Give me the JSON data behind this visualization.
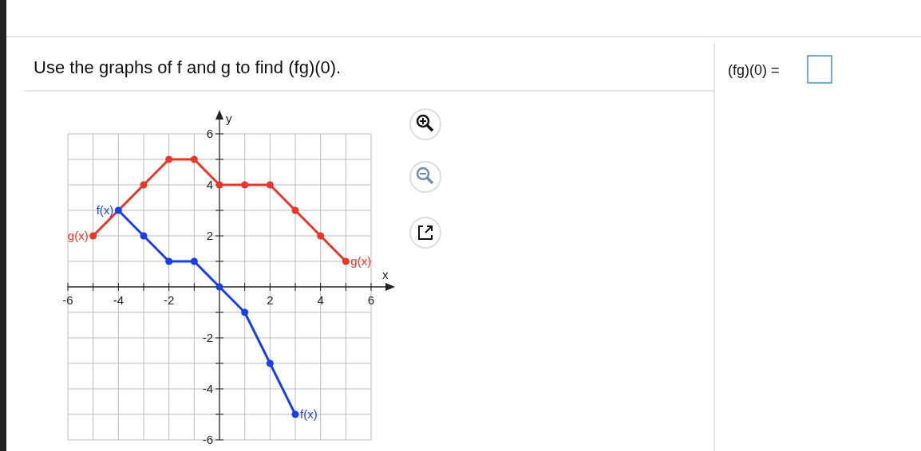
{
  "chart_data": {
    "type": "line",
    "title": "Use the graphs of f and g to find (fg)(0).",
    "annotations": [
      "(fg)(0) ="
    ],
    "xlabel": "x",
    "ylabel": "y",
    "series": [
      {
        "name": "g(x)",
        "color": "#e8372a",
        "x": [
          -5,
          -3,
          -2,
          -1,
          0,
          1,
          2,
          3,
          4,
          5
        ],
        "values": [
          2,
          4,
          5,
          5,
          4,
          4,
          4,
          3,
          2,
          1
        ]
      },
      {
        "name": "f(x)",
        "color": "#1a3fe8",
        "x": [
          -4,
          -3,
          -2,
          -1,
          0,
          1,
          2,
          3
        ],
        "values": [
          3,
          2,
          1,
          1,
          0,
          -1,
          -3,
          -5
        ]
      }
    ],
    "xlim": [
      -6,
      6
    ],
    "ylim": [
      -6,
      6
    ],
    "xticks": [
      -6,
      {
        "value": -5,
        "label": null
      },
      -4,
      {
        "value": -3,
        "label": null
      },
      -2,
      {
        "value": -1,
        "label": null
      },
      {
        "value": 1,
        "label": null
      },
      2,
      {
        "value": 3,
        "label": null
      },
      4,
      {
        "value": 5,
        "label": null
      },
      6
    ],
    "yticks": [
      -6,
      {
        "value": -5,
        "label": null
      },
      -4,
      {
        "value": -3,
        "label": null
      },
      -2,
      {
        "value": -1,
        "label": null
      },
      {
        "value": 1,
        "label": null
      },
      2,
      {
        "value": 3,
        "label": null
      },
      4,
      {
        "value": 5,
        "label": null
      },
      6
    ],
    "grid": true,
    "marker": "circle"
  }
}
